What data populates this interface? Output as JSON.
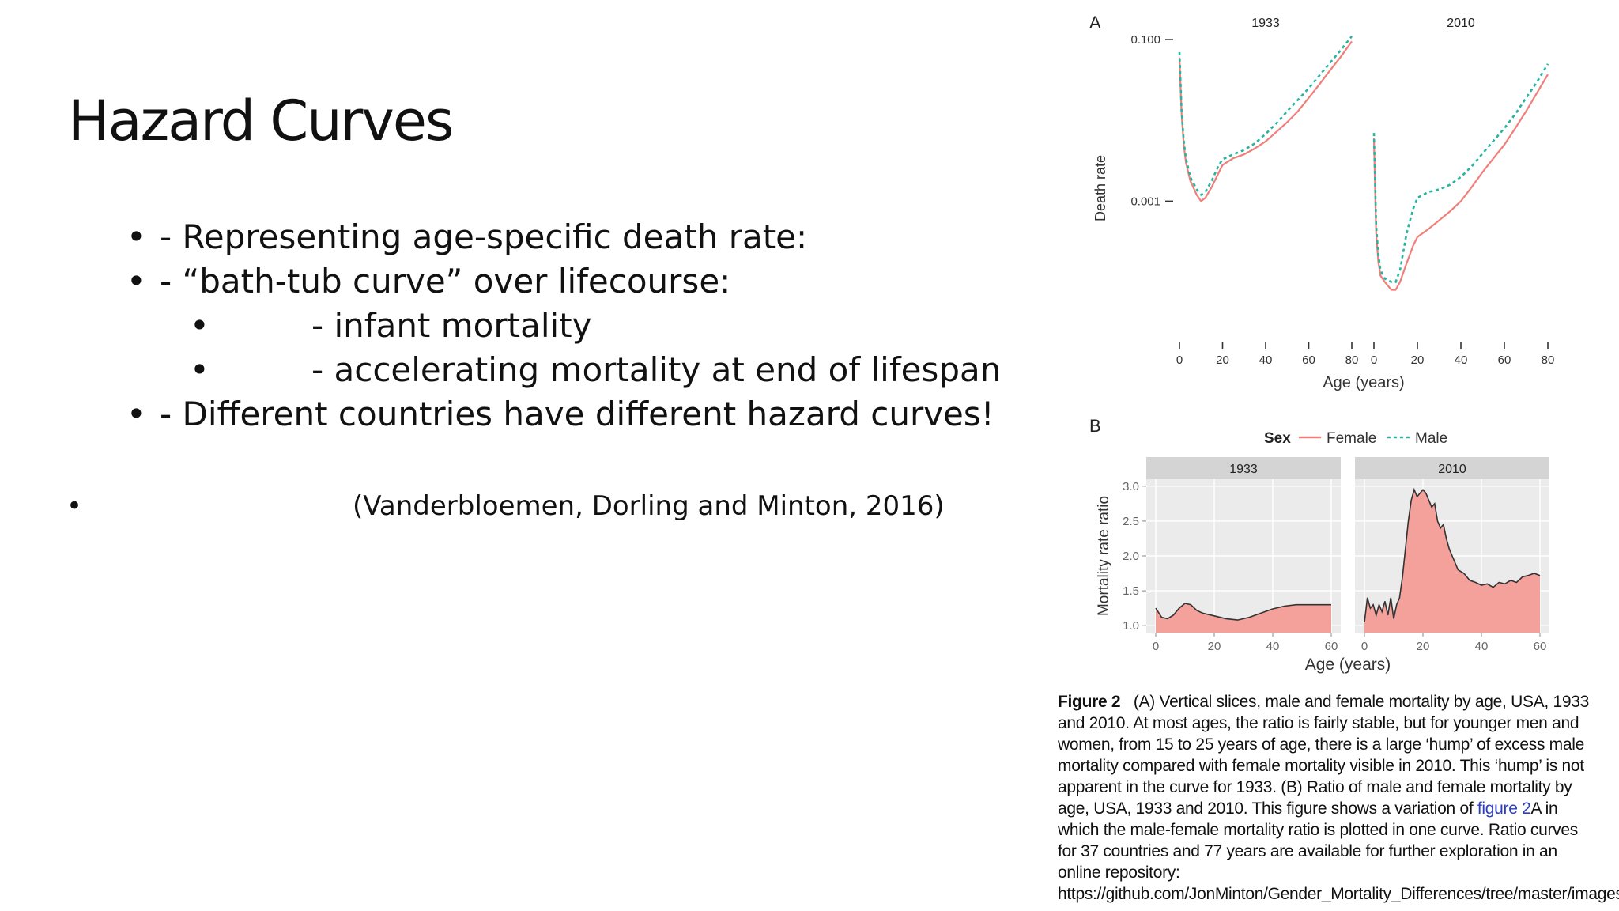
{
  "slide": {
    "title": "Hazard Curves",
    "bullets": [
      {
        "level": 1,
        "text": "- Representing age-specific death rate:"
      },
      {
        "level": 1,
        "text": "- “bath-tub curve” over lifecourse:"
      },
      {
        "level": 2,
        "text": "- infant mortality"
      },
      {
        "level": 2,
        "text": "- accelerating mortality at end of lifespan"
      },
      {
        "level": 1,
        "text": "- Different countries have different hazard curves!"
      }
    ],
    "citation": "(Vanderbloemen, Dorling and Minton, 2016)",
    "bullet_glyph": "•"
  },
  "figure": {
    "panelA_label": "A",
    "panelB_label": "B",
    "caption_label": "Figure 2",
    "caption_part1": "(A) Vertical slices, male and female mortality by age, USA, 1933 and 2010. At most ages, the ratio is fairly stable, but for younger men and women, from 15 to 25 years of age, there is a large ‘hump’ of excess male mortality compared with female mortality visible in 2010. This ‘hump’ is not apparent in the curve for 1933. (B) Ratio of male and female mortality by age, USA, 1933 and 2010. This figure shows a variation of ",
    "caption_link": "figure 2",
    "caption_part2": "A in which the male-female mortality ratio is plotted in one curve. Ratio curves for 37 countries and 77 years are available for further exploration in an online repository: https://github.com/JonMinton/Gender_Mortality_Differences/tree/master/images."
  },
  "chart_data": [
    {
      "type": "line",
      "panel": "A",
      "facets": [
        "1933",
        "2010"
      ],
      "ylabel": "Death rate",
      "xlabel": "Age (years)",
      "y_scale": "log",
      "yticks": [
        0.001,
        0.1
      ],
      "ytick_labels": [
        "0.001",
        "0.100"
      ],
      "xticks": [
        0,
        20,
        40,
        60,
        80
      ],
      "xlim": [
        0,
        80
      ],
      "ylim": [
        3e-05,
        0.12
      ],
      "colors": {
        "Female": "#f07f7a",
        "Male": "#27b4a0"
      },
      "series": [
        {
          "name": "Female",
          "facet": "1933",
          "x": [
            0,
            1,
            2,
            3,
            5,
            8,
            10,
            12,
            15,
            18,
            20,
            25,
            30,
            35,
            40,
            45,
            50,
            55,
            60,
            65,
            70,
            75,
            80
          ],
          "y": [
            0.06,
            0.012,
            0.005,
            0.003,
            0.0018,
            0.0012,
            0.001,
            0.0011,
            0.0015,
            0.0022,
            0.0028,
            0.0034,
            0.0038,
            0.0045,
            0.0055,
            0.0072,
            0.0095,
            0.013,
            0.019,
            0.028,
            0.042,
            0.062,
            0.095
          ]
        },
        {
          "name": "Male",
          "facet": "1933",
          "x": [
            0,
            1,
            2,
            3,
            5,
            8,
            10,
            12,
            15,
            18,
            20,
            25,
            30,
            35,
            40,
            45,
            50,
            55,
            60,
            65,
            70,
            75,
            80
          ],
          "y": [
            0.07,
            0.013,
            0.0056,
            0.0034,
            0.002,
            0.0014,
            0.0012,
            0.0013,
            0.0018,
            0.0027,
            0.0033,
            0.0038,
            0.0043,
            0.0052,
            0.0068,
            0.0092,
            0.013,
            0.018,
            0.025,
            0.036,
            0.052,
            0.075,
            0.11
          ]
        },
        {
          "name": "Female",
          "facet": "2010",
          "x": [
            0,
            1,
            2,
            3,
            5,
            8,
            10,
            12,
            15,
            18,
            20,
            25,
            30,
            35,
            40,
            45,
            50,
            55,
            60,
            65,
            70,
            75,
            80
          ],
          "y": [
            0.006,
            0.0004,
            0.00018,
            0.00012,
            0.0001,
            8e-05,
            8e-05,
            0.0001,
            0.00017,
            0.00028,
            0.00036,
            0.00045,
            0.00058,
            0.00075,
            0.001,
            0.0015,
            0.0023,
            0.0034,
            0.005,
            0.008,
            0.013,
            0.022,
            0.037
          ]
        },
        {
          "name": "Male",
          "facet": "2010",
          "x": [
            0,
            1,
            2,
            3,
            5,
            8,
            10,
            12,
            15,
            18,
            20,
            25,
            30,
            35,
            40,
            45,
            50,
            55,
            60,
            65,
            70,
            75,
            80
          ],
          "y": [
            0.007,
            0.0005,
            0.00022,
            0.00014,
            0.00011,
            0.0001,
            0.0001,
            0.00014,
            0.0004,
            0.0008,
            0.0011,
            0.0013,
            0.0014,
            0.0016,
            0.002,
            0.0027,
            0.0039,
            0.0056,
            0.008,
            0.012,
            0.019,
            0.03,
            0.05
          ]
        }
      ]
    },
    {
      "type": "area",
      "panel": "B",
      "facets": [
        "1933",
        "2010"
      ],
      "ylabel": "Mortality rate ratio",
      "xlabel": "Age (years)",
      "legend_title": "Sex",
      "legend_items": [
        "Female",
        "Male"
      ],
      "legend_position": "top",
      "grid": true,
      "ylim": [
        0.9,
        3.1
      ],
      "yticks": [
        1.0,
        1.5,
        2.0,
        2.5,
        3.0
      ],
      "ytick_labels": [
        "1.0",
        "1.5",
        "2.0",
        "2.5",
        "3.0"
      ],
      "xticks": [
        0,
        20,
        40,
        60
      ],
      "xlim": [
        0,
        60
      ],
      "fill_color": "#f4a09b",
      "series": [
        {
          "facet": "1933",
          "x": [
            0,
            2,
            4,
            6,
            8,
            10,
            12,
            14,
            16,
            18,
            20,
            24,
            28,
            32,
            36,
            40,
            44,
            48,
            52,
            56,
            60
          ],
          "y": [
            1.25,
            1.12,
            1.1,
            1.15,
            1.25,
            1.32,
            1.3,
            1.22,
            1.18,
            1.16,
            1.14,
            1.1,
            1.08,
            1.12,
            1.18,
            1.24,
            1.28,
            1.3,
            1.3,
            1.3,
            1.3
          ]
        },
        {
          "facet": "2010",
          "x": [
            0,
            1,
            2,
            3,
            4,
            5,
            6,
            7,
            8,
            9,
            10,
            11,
            12,
            13,
            14,
            15,
            16,
            17,
            18,
            19,
            20,
            21,
            22,
            23,
            24,
            25,
            26,
            27,
            28,
            29,
            30,
            32,
            34,
            36,
            38,
            40,
            42,
            44,
            46,
            48,
            50,
            52,
            54,
            56,
            58,
            60
          ],
          "y": [
            1.05,
            1.4,
            1.25,
            1.3,
            1.15,
            1.3,
            1.2,
            1.35,
            1.15,
            1.4,
            1.1,
            1.3,
            1.4,
            1.7,
            2.1,
            2.5,
            2.8,
            2.95,
            2.85,
            2.9,
            2.95,
            2.9,
            2.8,
            2.7,
            2.75,
            2.5,
            2.4,
            2.45,
            2.25,
            2.1,
            2.0,
            1.8,
            1.75,
            1.65,
            1.62,
            1.58,
            1.6,
            1.55,
            1.62,
            1.6,
            1.65,
            1.62,
            1.7,
            1.72,
            1.75,
            1.72
          ]
        }
      ]
    }
  ]
}
